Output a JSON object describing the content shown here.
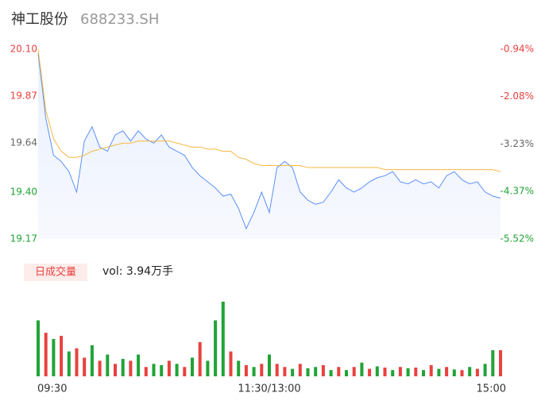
{
  "chart_data": {
    "type": "intraday",
    "title": "神工股份",
    "subtitle": "688233.SH",
    "volume_label": "日成交量",
    "volume_text": "vol: 3.94万手",
    "x": [
      0,
      4,
      8,
      12,
      16,
      20,
      24,
      28,
      32,
      36,
      40,
      44,
      48,
      52,
      56,
      60,
      64,
      68,
      72,
      76,
      80,
      84,
      88,
      92,
      96,
      100,
      104,
      108,
      112,
      116,
      120,
      124,
      128,
      132,
      136,
      140,
      144,
      148,
      152,
      156,
      160,
      164,
      168,
      172,
      176,
      180,
      184,
      188,
      192,
      196,
      200,
      204,
      208,
      212,
      216,
      220,
      224,
      228,
      232,
      236,
      240
    ],
    "xlim": [
      0,
      240
    ],
    "xticks": [
      {
        "value": 0,
        "label": "09:30"
      },
      {
        "value": 120,
        "label": "11:30/13:00"
      },
      {
        "value": 240,
        "label": "15:00"
      }
    ],
    "series": [
      {
        "color": "#5b8ff9",
        "values": [
          20.08,
          19.76,
          19.58,
          19.55,
          19.5,
          19.4,
          19.65,
          19.72,
          19.62,
          19.6,
          19.68,
          19.7,
          19.65,
          19.7,
          19.66,
          19.64,
          19.68,
          19.62,
          19.6,
          19.58,
          19.52,
          19.48,
          19.45,
          19.42,
          19.38,
          19.39,
          19.32,
          19.22,
          19.3,
          19.4,
          19.3,
          19.52,
          19.55,
          19.52,
          19.4,
          19.36,
          19.34,
          19.35,
          19.4,
          19.46,
          19.42,
          19.4,
          19.42,
          19.45,
          19.47,
          19.48,
          19.5,
          19.45,
          19.44,
          19.46,
          19.44,
          19.45,
          19.42,
          19.48,
          19.5,
          19.46,
          19.44,
          19.45,
          19.4,
          19.38,
          19.37
        ]
      },
      {
        "color": "#f5b942",
        "values": [
          20.1,
          19.8,
          19.66,
          19.6,
          19.57,
          19.57,
          19.58,
          19.6,
          19.61,
          19.62,
          19.63,
          19.64,
          19.64,
          19.65,
          19.65,
          19.65,
          19.65,
          19.65,
          19.64,
          19.63,
          19.62,
          19.62,
          19.61,
          19.61,
          19.6,
          19.6,
          19.57,
          19.56,
          19.54,
          19.53,
          19.53,
          19.53,
          19.53,
          19.53,
          19.53,
          19.52,
          19.52,
          19.52,
          19.52,
          19.52,
          19.52,
          19.52,
          19.52,
          19.52,
          19.52,
          19.51,
          19.51,
          19.51,
          19.51,
          19.51,
          19.51,
          19.51,
          19.51,
          19.51,
          19.51,
          19.51,
          19.51,
          19.51,
          19.51,
          19.51,
          19.5
        ]
      }
    ],
    "ylim": [
      19.17,
      20.1
    ],
    "yticks": [
      {
        "value": 20.1,
        "label": "20.10"
      },
      19.87,
      19.64,
      {
        "value": 19.4,
        "label": "19.40"
      },
      19.17
    ],
    "ytick_colors": [
      "#e8423f",
      "#e8423f",
      "#666666",
      "#21a336",
      "#21a336"
    ],
    "y2lim": [
      -5.52,
      -0.94
    ],
    "y2ticks": [
      {
        "value": -0.94,
        "label": "-0.94%"
      },
      {
        "value": -2.08,
        "label": "-2.08%"
      },
      {
        "value": -3.23,
        "label": "-3.23%"
      },
      {
        "value": -4.37,
        "label": "-4.37%"
      },
      {
        "value": -5.52,
        "label": "-5.52%"
      }
    ],
    "y2tick_colors": [
      "#e8423f",
      "#e8423f",
      "#666666",
      "#21a336",
      "#21a336"
    ],
    "volume": {
      "ylim": [
        0,
        1200
      ],
      "values": [
        900,
        700,
        600,
        650,
        400,
        450,
        300,
        500,
        250,
        350,
        200,
        280,
        250,
        350,
        150,
        200,
        180,
        250,
        200,
        150,
        300,
        550,
        250,
        900,
        1200,
        400,
        250,
        180,
        150,
        200,
        350,
        200,
        150,
        120,
        200,
        130,
        150,
        180,
        100,
        150,
        100,
        150,
        220,
        120,
        160,
        140,
        100,
        150,
        130,
        140,
        100,
        180,
        120,
        150,
        110,
        100,
        150,
        120,
        200,
        420,
        420
      ],
      "colors": [
        "#21a336",
        "#e8423f",
        "#21a336",
        "#e8423f",
        "#21a336",
        "#e8423f",
        "#e8423f",
        "#21a336",
        "#e8423f",
        "#21a336",
        "#e8423f",
        "#21a336",
        "#e8423f",
        "#21a336",
        "#e8423f",
        "#21a336",
        "#21a336",
        "#e8423f",
        "#21a336",
        "#e8423f",
        "#21a336",
        "#e8423f",
        "#21a336",
        "#21a336",
        "#21a336",
        "#e8423f",
        "#21a336",
        "#e8423f",
        "#21a336",
        "#e8423f",
        "#21a336",
        "#e8423f",
        "#e8423f",
        "#21a336",
        "#e8423f",
        "#21a336",
        "#21a336",
        "#e8423f",
        "#21a336",
        "#e8423f",
        "#21a336",
        "#e8423f",
        "#21a336",
        "#e8423f",
        "#21a336",
        "#e8423f",
        "#21a336",
        "#e8423f",
        "#21a336",
        "#e8423f",
        "#21a336",
        "#e8423f",
        "#21a336",
        "#e8423f",
        "#21a336",
        "#e8423f",
        "#21a336",
        "#e8423f",
        "#21a336",
        "#21a336",
        "#e8423f"
      ]
    }
  }
}
